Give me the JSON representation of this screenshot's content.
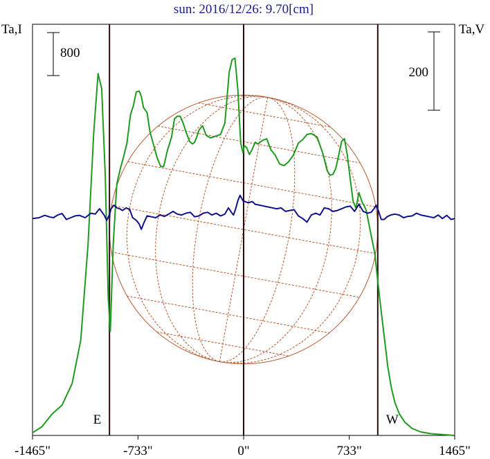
{
  "chart_data": {
    "type": "line",
    "title": "sun: 2016/12/26: 9.70[cm]",
    "left_axis_label": "Ta,I",
    "right_axis_label": "Ta,V",
    "x_axis": {
      "range": [
        -1465,
        1465
      ],
      "ticks": [
        {
          "value": -1465,
          "label": "-1465\""
        },
        {
          "value": -733,
          "label": "-733\""
        },
        {
          "value": 0,
          "label": "0\""
        },
        {
          "value": 733,
          "label": "733\""
        },
        {
          "value": 1465,
          "label": "1465\""
        }
      ]
    },
    "limb_markers": [
      {
        "label": "E",
        "x": -931
      },
      {
        "label": "W",
        "x": 931
      }
    ],
    "center_line_x": 0,
    "scale_bars": [
      {
        "side": "left",
        "value": "800",
        "series": "Ta,I"
      },
      {
        "side": "right",
        "value": "200",
        "series": "Ta,V"
      }
    ],
    "solar_disk": {
      "radius_arcsec": 931,
      "color": "#b5552c"
    },
    "series": [
      {
        "name": "Ta,I",
        "color": "#1e9a1e",
        "y_range": [
          0,
          4740
        ],
        "x": [
          -1465,
          -1400,
          -1330,
          -1260,
          -1190,
          -1130,
          -1080,
          -1040,
          -1010,
          -985,
          -960,
          -940,
          -925,
          -905,
          -880,
          -855,
          -835,
          -810,
          -785,
          -765,
          -745,
          -725,
          -710,
          -695,
          -670,
          -650,
          -625,
          -600,
          -575,
          -555,
          -530,
          -500,
          -480,
          -460,
          -440,
          -420,
          -400,
          -375,
          -355,
          -340,
          -325,
          -310,
          -285,
          -260,
          -230,
          -195,
          -160,
          -130,
          -100,
          -80,
          -60,
          -40,
          -20,
          -5,
          5,
          20,
          40,
          60,
          80,
          100,
          130,
          160,
          190,
          220,
          250,
          280,
          310,
          345,
          380,
          410,
          440,
          470,
          510,
          550,
          580,
          600,
          620,
          640,
          660,
          680,
          700,
          720,
          740,
          760,
          780,
          800,
          820,
          850,
          880,
          910,
          930,
          950,
          975,
          1000,
          1025,
          1050,
          1080,
          1120,
          1170,
          1230,
          1300,
          1380,
          1465
        ],
        "y": [
          30,
          100,
          245,
          350,
          600,
          1100,
          2200,
          3500,
          4170,
          4000,
          3000,
          1600,
          1200,
          2200,
          2900,
          3080,
          3200,
          3370,
          3700,
          3800,
          3960,
          3970,
          3910,
          3780,
          3720,
          3500,
          3350,
          3200,
          3100,
          3100,
          3280,
          3440,
          3650,
          3680,
          3680,
          3600,
          3500,
          3390,
          3360,
          3380,
          3440,
          3520,
          3570,
          3460,
          3430,
          3450,
          3470,
          3600,
          4190,
          4330,
          4350,
          3980,
          3370,
          3260,
          3340,
          3320,
          3240,
          3300,
          3380,
          3360,
          3400,
          3420,
          3290,
          3230,
          3130,
          3110,
          3150,
          3230,
          3370,
          3410,
          3470,
          3480,
          3440,
          3250,
          3050,
          3000,
          3010,
          3080,
          3230,
          3390,
          3420,
          3230,
          2950,
          2700,
          2620,
          2800,
          2700,
          2600,
          2350,
          2100,
          1800,
          1500,
          1150,
          800,
          550,
          380,
          250,
          150,
          80,
          40,
          20,
          10,
          0
        ]
      },
      {
        "name": "Ta,V",
        "color": "#10108a",
        "y_range": [
          -1212,
          1086
        ],
        "x": [
          -1465,
          -1420,
          -1380,
          -1350,
          -1320,
          -1290,
          -1260,
          -1230,
          -1200,
          -1170,
          -1140,
          -1100,
          -1060,
          -1030,
          -1000,
          -970,
          -950,
          -935,
          -920,
          -900,
          -880,
          -860,
          -840,
          -815,
          -790,
          -770,
          -745,
          -725,
          -710,
          -690,
          -670,
          -640,
          -610,
          -580,
          -550,
          -520,
          -490,
          -460,
          -430,
          -400,
          -370,
          -340,
          -310,
          -280,
          -250,
          -220,
          -190,
          -160,
          -130,
          -105,
          -85,
          -70,
          -55,
          -40,
          -25,
          -5,
          10,
          25,
          40,
          60,
          80,
          110,
          140,
          170,
          200,
          230,
          260,
          290,
          320,
          350,
          380,
          410,
          440,
          470,
          500,
          530,
          560,
          590,
          620,
          650,
          680,
          710,
          740,
          770,
          800,
          830,
          860,
          885,
          905,
          920,
          935,
          955,
          975,
          995,
          1020,
          1050,
          1080,
          1110,
          1140,
          1170,
          1200,
          1230,
          1260,
          1290,
          1320,
          1350,
          1380,
          1410,
          1440,
          1465
        ],
        "y": [
          0,
          5,
          18,
          10,
          5,
          20,
          28,
          -5,
          5,
          15,
          18,
          5,
          30,
          25,
          55,
          22,
          -10,
          15,
          55,
          75,
          60,
          55,
          45,
          60,
          50,
          5,
          -10,
          -30,
          -60,
          -20,
          15,
          10,
          5,
          20,
          12,
          25,
          40,
          25,
          20,
          30,
          35,
          10,
          15,
          30,
          35,
          20,
          30,
          15,
          25,
          60,
          35,
          20,
          55,
          100,
          130,
          100,
          95,
          90,
          90,
          95,
          80,
          75,
          70,
          65,
          60,
          55,
          60,
          40,
          45,
          50,
          15,
          0,
          -20,
          20,
          30,
          20,
          60,
          55,
          40,
          45,
          55,
          65,
          70,
          40,
          80,
          40,
          30,
          35,
          55,
          75,
          45,
          -5,
          -5,
          10,
          20,
          25,
          20,
          5,
          12,
          15,
          30,
          20,
          15,
          10,
          5,
          20,
          0,
          18,
          -5,
          0
        ]
      }
    ]
  }
}
